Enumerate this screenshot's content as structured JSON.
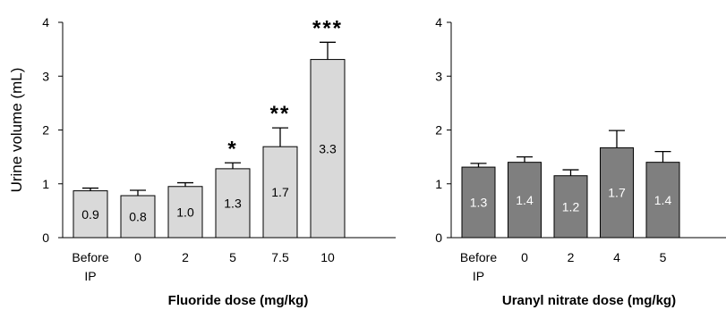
{
  "chart_data": [
    {
      "type": "bar",
      "ylabel": "Urine volume (mL)",
      "xlabel": "Fluoride dose (mg/kg)",
      "categories": [
        [
          "Before",
          "IP"
        ],
        [
          "0"
        ],
        [
          "2"
        ],
        [
          "5"
        ],
        [
          "7.5"
        ],
        [
          "10"
        ]
      ],
      "values": [
        0.87,
        0.78,
        0.95,
        1.28,
        1.69,
        3.31
      ],
      "errors": [
        0.05,
        0.1,
        0.07,
        0.11,
        0.35,
        0.32
      ],
      "value_labels": [
        "0.9",
        "0.8",
        "1.0",
        "1.3",
        "1.7",
        "3.3"
      ],
      "significance": [
        "",
        "",
        "",
        "*",
        "**",
        "***"
      ],
      "ylim": [
        0,
        4
      ],
      "yticks": [
        "0",
        "1",
        "2",
        "3",
        "4"
      ],
      "bar_color": "#d9d9d9",
      "label_color": "#000000"
    },
    {
      "type": "bar",
      "ylabel": "",
      "xlabel": "Uranyl nitrate dose (mg/kg)",
      "categories": [
        [
          "Before",
          "IP"
        ],
        [
          "0"
        ],
        [
          "2"
        ],
        [
          "4"
        ],
        [
          "5"
        ]
      ],
      "values": [
        1.31,
        1.4,
        1.15,
        1.67,
        1.4
      ],
      "errors": [
        0.07,
        0.1,
        0.11,
        0.32,
        0.2
      ],
      "value_labels": [
        "1.3",
        "1.4",
        "1.2",
        "1.7",
        "1.4"
      ],
      "significance": [
        "",
        "",
        "",
        "",
        ""
      ],
      "ylim": [
        0,
        4
      ],
      "yticks": [
        "0",
        "1",
        "2",
        "3",
        "4"
      ],
      "bar_color": "#7f7f7f",
      "label_color": "#ffffff"
    }
  ]
}
